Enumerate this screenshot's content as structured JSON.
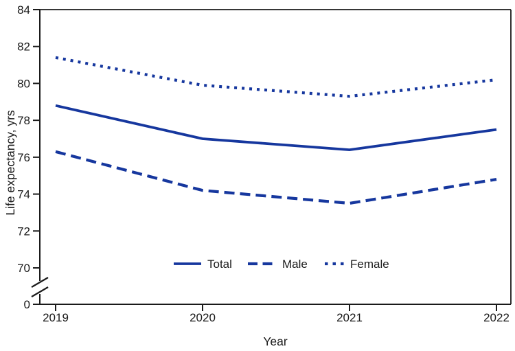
{
  "colors": {
    "line_blue": "#16379e",
    "axis_black": "#1a1a1a",
    "background": "#ffffff"
  },
  "chart_data": {
    "type": "line",
    "title": "",
    "xlabel": "Year",
    "ylabel": "Life expectancy, yrs",
    "x": [
      "2019",
      "2020",
      "2021",
      "2022"
    ],
    "y_ticks": [
      84,
      82,
      80,
      78,
      76,
      74,
      72,
      70
    ],
    "y_break_label": "0",
    "y_axis_break": true,
    "ylim_display": [
      70,
      84
    ],
    "grid": false,
    "legend_position": "bottom-center-inside",
    "series": [
      {
        "name": "Total",
        "style": "solid",
        "values": [
          78.8,
          77.0,
          76.4,
          77.5
        ]
      },
      {
        "name": "Male",
        "style": "dashed",
        "values": [
          76.3,
          74.2,
          73.5,
          74.8
        ]
      },
      {
        "name": "Female",
        "style": "dotted",
        "values": [
          81.4,
          79.9,
          79.3,
          80.2
        ]
      }
    ]
  }
}
